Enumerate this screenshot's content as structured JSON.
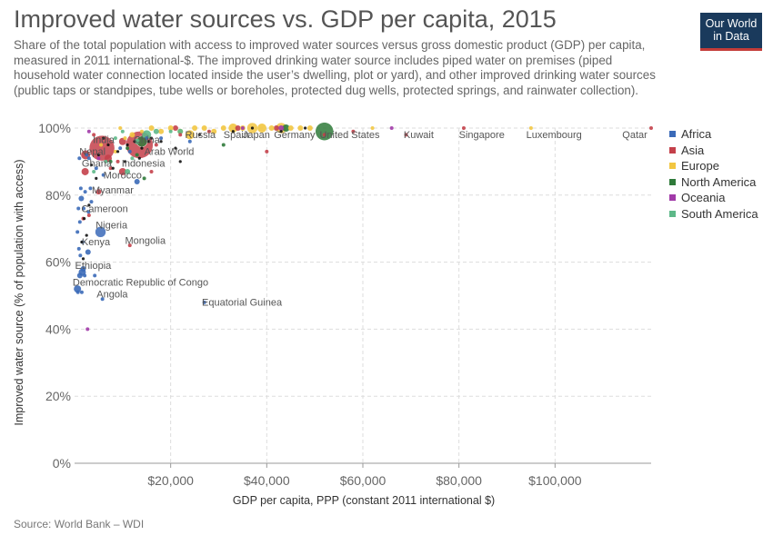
{
  "title": "Improved water sources vs. GDP per capita, 2015",
  "subtitle": "Share of the total population with access to improved water sources versus gross domestic product (GDP) per capita, measured in 2011 international-$. The improved drinking water source includes piped water on premises (piped household water connection located inside the user’s dwelling, plot or yard), and other improved drinking water sources (public taps or standpipes, tube wells or boreholes, protected dug wells, protected springs, and rainwater collection).",
  "logo": {
    "line1": "Our World",
    "line2": "in Data"
  },
  "source": "Source: World Bank – WDI",
  "chart_data": {
    "type": "scatter",
    "title": "Improved water sources vs. GDP per capita, 2015",
    "xlabel": "GDP per capita, PPP (constant 2011 international $)",
    "ylabel": "Improved water source (% of population with access)",
    "xlim": [
      0,
      120000
    ],
    "ylim": [
      0,
      100
    ],
    "x_ticks": [
      20000,
      40000,
      60000,
      80000,
      100000
    ],
    "x_tick_labels": [
      "$20,000",
      "$40,000",
      "$60,000",
      "$80,000",
      "$100,000"
    ],
    "y_ticks": [
      0,
      20,
      40,
      60,
      80,
      100
    ],
    "y_tick_labels": [
      "0%",
      "20%",
      "40%",
      "60%",
      "80%",
      "100%"
    ],
    "grid": true,
    "legend_position": "right",
    "series": [
      {
        "name": "Africa",
        "color": "#3b6ab8",
        "points": [
          {
            "x": 13000,
            "y": 84,
            "s": 3
          },
          {
            "x": 600,
            "y": 52,
            "s": 4
          },
          {
            "x": 1600,
            "y": 57,
            "s": 4
          },
          {
            "x": 1100,
            "y": 56,
            "s": 3
          },
          {
            "x": 700,
            "y": 51,
            "s": 2
          },
          {
            "x": 1500,
            "y": 51,
            "s": 2
          },
          {
            "x": 4200,
            "y": 56,
            "s": 2
          },
          {
            "x": 5800,
            "y": 49,
            "s": 2
          },
          {
            "x": 27000,
            "y": 48,
            "s": 2
          },
          {
            "x": 2900,
            "y": 75,
            "s": 2
          },
          {
            "x": 5400,
            "y": 69,
            "s": 6
          },
          {
            "x": 2800,
            "y": 63,
            "s": 3
          },
          {
            "x": 1800,
            "y": 58,
            "s": 3
          },
          {
            "x": 1200,
            "y": 62,
            "s": 2
          },
          {
            "x": 900,
            "y": 64,
            "s": 2
          },
          {
            "x": 1700,
            "y": 66,
            "s": 2
          },
          {
            "x": 1100,
            "y": 72,
            "s": 2
          },
          {
            "x": 1900,
            "y": 76,
            "s": 2
          },
          {
            "x": 1400,
            "y": 79,
            "s": 3
          },
          {
            "x": 2200,
            "y": 81,
            "s": 2
          },
          {
            "x": 1300,
            "y": 82,
            "s": 2
          },
          {
            "x": 800,
            "y": 76,
            "s": 2
          },
          {
            "x": 600,
            "y": 69,
            "s": 2
          },
          {
            "x": 3500,
            "y": 78,
            "s": 2
          },
          {
            "x": 1000,
            "y": 91,
            "s": 2
          },
          {
            "x": 3000,
            "y": 91,
            "s": 2
          },
          {
            "x": 6000,
            "y": 86,
            "s": 2
          },
          {
            "x": 9500,
            "y": 94,
            "s": 2
          },
          {
            "x": 11500,
            "y": 93,
            "s": 2
          },
          {
            "x": 15000,
            "y": 97,
            "s": 2
          },
          {
            "x": 18000,
            "y": 97,
            "s": 2
          },
          {
            "x": 24000,
            "y": 96,
            "s": 2
          },
          {
            "x": 2500,
            "y": 92,
            "s": 2
          },
          {
            "x": 4500,
            "y": 88,
            "s": 2
          },
          {
            "x": 2100,
            "y": 56,
            "s": 2
          },
          {
            "x": 3300,
            "y": 82,
            "s": 2
          }
        ]
      },
      {
        "name": "Asia",
        "color": "#c4404a",
        "points": [
          {
            "x": 5700,
            "y": 94,
            "s": 14
          },
          {
            "x": 13500,
            "y": 95,
            "s": 15
          },
          {
            "x": 2300,
            "y": 92,
            "s": 5
          },
          {
            "x": 2200,
            "y": 87,
            "s": 4
          },
          {
            "x": 7000,
            "y": 91,
            "s": 4
          },
          {
            "x": 10000,
            "y": 87,
            "s": 4
          },
          {
            "x": 10000,
            "y": 96,
            "s": 4
          },
          {
            "x": 11500,
            "y": 65,
            "s": 2
          },
          {
            "x": 5000,
            "y": 81,
            "s": 3
          },
          {
            "x": 17000,
            "y": 95,
            "s": 2
          },
          {
            "x": 22000,
            "y": 98,
            "s": 2
          },
          {
            "x": 28000,
            "y": 99,
            "s": 2
          },
          {
            "x": 34000,
            "y": 100,
            "s": 3
          },
          {
            "x": 42000,
            "y": 100,
            "s": 3
          },
          {
            "x": 40000,
            "y": 93,
            "s": 2
          },
          {
            "x": 52000,
            "y": 98,
            "s": 2
          },
          {
            "x": 58000,
            "y": 99,
            "s": 2
          },
          {
            "x": 69000,
            "y": 98,
            "s": 2
          },
          {
            "x": 81000,
            "y": 100,
            "s": 2
          },
          {
            "x": 120000,
            "y": 100,
            "s": 2
          },
          {
            "x": 16000,
            "y": 87,
            "s": 2
          },
          {
            "x": 7500,
            "y": 88,
            "s": 2
          },
          {
            "x": 3000,
            "y": 74,
            "s": 2
          },
          {
            "x": 1800,
            "y": 73,
            "s": 2
          },
          {
            "x": 4000,
            "y": 98,
            "s": 2
          },
          {
            "x": 9000,
            "y": 90,
            "s": 2
          },
          {
            "x": 21000,
            "y": 100,
            "s": 3
          }
        ]
      },
      {
        "name": "Europe",
        "color": "#f2c641",
        "points": [
          {
            "x": 16000,
            "y": 100,
            "s": 3
          },
          {
            "x": 18000,
            "y": 99,
            "s": 3
          },
          {
            "x": 20000,
            "y": 100,
            "s": 3
          },
          {
            "x": 22000,
            "y": 99,
            "s": 3
          },
          {
            "x": 24000,
            "y": 98,
            "s": 5
          },
          {
            "x": 25000,
            "y": 100,
            "s": 3
          },
          {
            "x": 27000,
            "y": 100,
            "s": 3
          },
          {
            "x": 29000,
            "y": 99,
            "s": 3
          },
          {
            "x": 31000,
            "y": 100,
            "s": 3
          },
          {
            "x": 33000,
            "y": 100,
            "s": 5
          },
          {
            "x": 35000,
            "y": 100,
            "s": 3
          },
          {
            "x": 37000,
            "y": 100,
            "s": 6
          },
          {
            "x": 39000,
            "y": 100,
            "s": 5
          },
          {
            "x": 41000,
            "y": 100,
            "s": 3
          },
          {
            "x": 43000,
            "y": 100,
            "s": 6
          },
          {
            "x": 45000,
            "y": 100,
            "s": 3
          },
          {
            "x": 47000,
            "y": 100,
            "s": 3
          },
          {
            "x": 49000,
            "y": 100,
            "s": 3
          },
          {
            "x": 62000,
            "y": 100,
            "s": 2
          },
          {
            "x": 95000,
            "y": 100,
            "s": 2
          },
          {
            "x": 12000,
            "y": 98,
            "s": 3
          },
          {
            "x": 14000,
            "y": 99,
            "s": 2
          },
          {
            "x": 10500,
            "y": 97,
            "s": 2
          },
          {
            "x": 8500,
            "y": 93,
            "s": 2
          },
          {
            "x": 5500,
            "y": 95,
            "s": 2
          },
          {
            "x": 9500,
            "y": 100,
            "s": 2
          }
        ]
      },
      {
        "name": "North America",
        "color": "#2f7a3a",
        "points": [
          {
            "x": 52000,
            "y": 99,
            "s": 10
          },
          {
            "x": 14000,
            "y": 96,
            "s": 6
          },
          {
            "x": 7500,
            "y": 90,
            "s": 2
          },
          {
            "x": 11000,
            "y": 94,
            "s": 2
          },
          {
            "x": 14500,
            "y": 85,
            "s": 2
          },
          {
            "x": 31000,
            "y": 95,
            "s": 2
          },
          {
            "x": 44000,
            "y": 100,
            "s": 4
          },
          {
            "x": 13000,
            "y": 92,
            "s": 2
          }
        ]
      },
      {
        "name": "Oceania",
        "color": "#a13aa8",
        "points": [
          {
            "x": 43000,
            "y": 100,
            "s": 3
          },
          {
            "x": 35000,
            "y": 100,
            "s": 2
          },
          {
            "x": 2700,
            "y": 40,
            "s": 2
          },
          {
            "x": 5000,
            "y": 91,
            "s": 2
          },
          {
            "x": 3000,
            "y": 99,
            "s": 2
          },
          {
            "x": 66000,
            "y": 100,
            "s": 2
          }
        ]
      },
      {
        "name": "South America",
        "color": "#5db888",
        "points": [
          {
            "x": 15000,
            "y": 98,
            "s": 5
          },
          {
            "x": 13000,
            "y": 96,
            "s": 3
          },
          {
            "x": 22000,
            "y": 99,
            "s": 3
          },
          {
            "x": 20000,
            "y": 99,
            "s": 2
          },
          {
            "x": 12000,
            "y": 91,
            "s": 2
          },
          {
            "x": 11000,
            "y": 87,
            "s": 3
          },
          {
            "x": 6500,
            "y": 90,
            "s": 2
          },
          {
            "x": 8500,
            "y": 97,
            "s": 2
          },
          {
            "x": 17000,
            "y": 99,
            "s": 3
          },
          {
            "x": 4000,
            "y": 87,
            "s": 2
          },
          {
            "x": 10000,
            "y": 99,
            "s": 2
          }
        ]
      },
      {
        "name": "",
        "color": "#111111",
        "points": [
          {
            "x": 9000,
            "y": 93,
            "s": 1.6
          },
          {
            "x": 11000,
            "y": 95,
            "s": 1.6
          },
          {
            "x": 12500,
            "y": 96,
            "s": 1.6
          },
          {
            "x": 14000,
            "y": 94,
            "s": 1.6
          },
          {
            "x": 16000,
            "y": 97,
            "s": 1.6
          },
          {
            "x": 18000,
            "y": 96,
            "s": 1.6
          },
          {
            "x": 21000,
            "y": 94,
            "s": 1.6
          },
          {
            "x": 22000,
            "y": 90,
            "s": 1.6
          },
          {
            "x": 10500,
            "y": 90,
            "s": 1.6
          },
          {
            "x": 8000,
            "y": 88,
            "s": 1.6
          },
          {
            "x": 5000,
            "y": 92,
            "s": 1.6
          },
          {
            "x": 3500,
            "y": 89,
            "s": 1.6
          },
          {
            "x": 4500,
            "y": 85,
            "s": 1.6
          },
          {
            "x": 3000,
            "y": 77,
            "s": 1.6
          },
          {
            "x": 2000,
            "y": 73,
            "s": 1.6
          },
          {
            "x": 2500,
            "y": 68,
            "s": 1.6
          },
          {
            "x": 1500,
            "y": 66,
            "s": 1.6
          },
          {
            "x": 1800,
            "y": 61,
            "s": 1.6
          },
          {
            "x": 7000,
            "y": 95,
            "s": 1.6
          },
          {
            "x": 13500,
            "y": 91,
            "s": 1.6
          },
          {
            "x": 15500,
            "y": 96,
            "s": 1.6
          },
          {
            "x": 26000,
            "y": 98,
            "s": 1.6
          },
          {
            "x": 33000,
            "y": 99,
            "s": 1.6
          },
          {
            "x": 37000,
            "y": 100,
            "s": 1.6
          },
          {
            "x": 43000,
            "y": 99,
            "s": 1.6
          },
          {
            "x": 48000,
            "y": 100,
            "s": 1.6
          },
          {
            "x": 6000,
            "y": 97,
            "s": 1.6
          }
        ]
      }
    ],
    "annotations": [
      {
        "text": "India",
        "x": 3800,
        "y": 95.5
      },
      {
        "text": "China",
        "x": 12300,
        "y": 95.5
      },
      {
        "text": "Nepal",
        "x": 1000,
        "y": 92
      },
      {
        "text": "Arab World",
        "x": 14500,
        "y": 92
      },
      {
        "text": "Ghana",
        "x": 1500,
        "y": 88.5
      },
      {
        "text": "Indonesia",
        "x": 9800,
        "y": 88.5
      },
      {
        "text": "Morocco",
        "x": 6000,
        "y": 85
      },
      {
        "text": "Myanmar",
        "x": 3600,
        "y": 80.5
      },
      {
        "text": "Cameroon",
        "x": 1400,
        "y": 75
      },
      {
        "text": "Nigeria",
        "x": 4400,
        "y": 70
      },
      {
        "text": "Mongolia",
        "x": 10500,
        "y": 65.5
      },
      {
        "text": "Kenya",
        "x": 1500,
        "y": 65
      },
      {
        "text": "Ethiopia",
        "x": 100,
        "y": 58
      },
      {
        "text": "Democratic Republic of Congo",
        "x": -400,
        "y": 53
      },
      {
        "text": "Angola",
        "x": 4600,
        "y": 49.5
      },
      {
        "text": "Equatorial Guinea",
        "x": 26500,
        "y": 47
      },
      {
        "text": "Russia",
        "x": 23000,
        "y": 97
      },
      {
        "text": "Spain",
        "x": 31000,
        "y": 97
      },
      {
        "text": "Japan",
        "x": 35000,
        "y": 97
      },
      {
        "text": "Germany",
        "x": 41500,
        "y": 97
      },
      {
        "text": "United States",
        "x": 51000,
        "y": 97
      },
      {
        "text": "Kuwait",
        "x": 68500,
        "y": 97
      },
      {
        "text": "Singapore",
        "x": 80000,
        "y": 97
      },
      {
        "text": "Luxembourg",
        "x": 94000,
        "y": 97
      },
      {
        "text": "Qatar",
        "x": 114000,
        "y": 97
      }
    ]
  }
}
